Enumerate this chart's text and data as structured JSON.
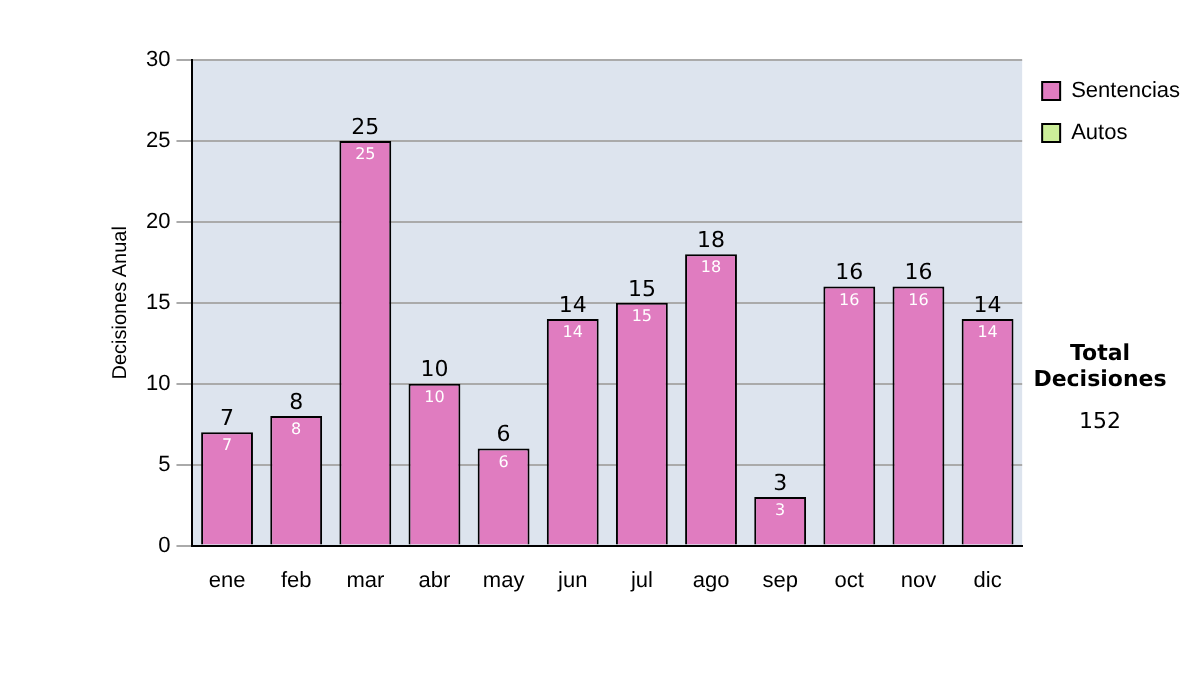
{
  "chart_data": {
    "type": "bar",
    "stacked": true,
    "ylabel": "Decisiones Anual",
    "categories": [
      "ene",
      "feb",
      "mar",
      "abr",
      "may",
      "jun",
      "jul",
      "ago",
      "sep",
      "oct",
      "nov",
      "dic"
    ],
    "series": [
      {
        "name": "Sentencias",
        "color": "#e07cc0",
        "values": [
          7,
          8,
          25,
          10,
          6,
          14,
          15,
          18,
          3,
          16,
          16,
          14
        ],
        "value_labels": [
          "7",
          "8",
          "25",
          "10",
          "6",
          "14",
          "15",
          "18",
          "3",
          "16",
          "16",
          "14"
        ]
      },
      {
        "name": "Autos",
        "color": "#ccee99",
        "values": [
          0,
          0,
          0,
          0,
          0,
          0,
          0,
          0,
          0,
          0,
          0,
          0
        ]
      }
    ],
    "totals": [
      "7",
      "8",
      "25",
      "10",
      "6",
      "14",
      "15",
      "18",
      "3",
      "16",
      "16",
      "14"
    ],
    "ylim": [
      0,
      30
    ],
    "yticks": [
      0,
      5,
      10,
      15,
      20,
      25,
      30
    ],
    "grid": "y",
    "legend": "right",
    "annotations": [
      "Total Decisiones",
      "152"
    ]
  }
}
